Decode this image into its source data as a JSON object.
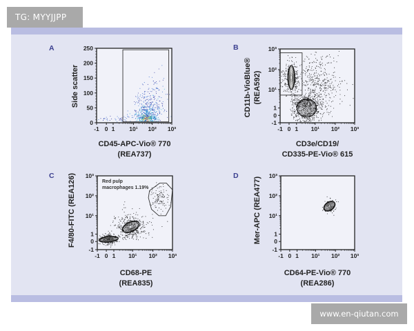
{
  "watermarks": {
    "top_left": "TG: MYYJJPP",
    "bottom_right": "www.en-qiutan.com"
  },
  "colors": {
    "band": "#b9bde2",
    "panel_bg": "#e2e4f2",
    "plot_bg": "#f1f2f9",
    "panel_letter": "#3b3f8f",
    "density": [
      "#2b2f9e",
      "#3a6fd0",
      "#33c0d8",
      "#4fc36a",
      "#f2d23c",
      "#e2402a"
    ]
  },
  "chart_data": [
    {
      "panel": "A",
      "type": "scatter",
      "style": "density pseudocolor",
      "xlabel": [
        "CD45-APC-Vio® 770",
        "(REA737)"
      ],
      "ylabel": [
        "Side scatter"
      ],
      "x_axis": {
        "scale": "biexponential",
        "ticks": [
          -1,
          0,
          1,
          10,
          100,
          1000
        ],
        "tick_labels": [
          "-1",
          "0",
          "1",
          "10¹",
          "10²",
          "10³"
        ]
      },
      "y_axis": {
        "scale": "linear",
        "range": [
          0,
          250
        ],
        "ticks": [
          0,
          50,
          100,
          150,
          200,
          250
        ],
        "tick_labels": [
          "0",
          "50",
          "100",
          "150",
          "200",
          "250"
        ]
      },
      "gate": {
        "shape": "rectangle",
        "x": [
          3,
          700
        ],
        "y": [
          3,
          245
        ]
      },
      "populations": [
        {
          "x_center": 50,
          "x_sd_decades": 0.22,
          "y_center": 15,
          "y_sd": 6,
          "y_scale": "linear",
          "events": 160,
          "density": "high"
        },
        {
          "x_center": 55,
          "x_sd_decades": 0.33,
          "y_center": 30,
          "y_sd": 20,
          "y_scale": "linear",
          "events": 320,
          "density": "medium"
        },
        {
          "x_center": 80,
          "x_sd_decades": 0.45,
          "y_center": 60,
          "y_sd": 45,
          "y_scale": "linear",
          "events": 260,
          "density": "low"
        },
        {
          "x_center": 1.5,
          "x_sd": 2,
          "x_scale": "linear",
          "y_center": 20,
          "y_sd": 10,
          "y_scale": "linear",
          "events": 50,
          "density": "low"
        }
      ]
    },
    {
      "panel": "B",
      "type": "scatter",
      "style": "contour with outliers",
      "xlabel": [
        "CD3e/CD19/",
        "CD335-PE-Vio® 615"
      ],
      "ylabel": [
        "CD11b-VioBlue®",
        "(REA592)"
      ],
      "x_axis": {
        "scale": "biexponential",
        "ticks": [
          -1,
          0,
          1,
          10,
          100,
          1000
        ],
        "tick_labels": [
          "-1",
          "0",
          "1",
          "10¹",
          "10²",
          "10³"
        ]
      },
      "y_axis": {
        "scale": "biexponential",
        "ticks": [
          -1,
          0,
          1,
          10,
          100,
          1000
        ],
        "tick_labels": [
          "-1",
          "0",
          "1",
          "10¹",
          "10²",
          "10³"
        ]
      },
      "gate": {
        "shape": "rectangle",
        "x": [
          -1,
          2
        ],
        "y": [
          5,
          650
        ]
      },
      "populations": [
        {
          "x_center": 3.5,
          "x_sd_decades": 0.45,
          "y_center": 1,
          "y_sd": 1.6,
          "y_scale": "linear",
          "events": 650,
          "contour": true
        },
        {
          "x_center": 0.3,
          "x_sd": 0.5,
          "x_scale": "linear",
          "y_center": 40,
          "y_sd_decades": 0.45,
          "events": 320,
          "contour": true
        },
        {
          "x_center": 15,
          "x_sd_decades": 0.6,
          "y_center": 20,
          "y_sd_decades": 0.7,
          "events": 420
        }
      ]
    },
    {
      "panel": "C",
      "type": "scatter",
      "style": "contour with outliers",
      "xlabel": [
        "CD68-PE",
        "(REA835)"
      ],
      "ylabel": [
        "F4/80-FITC (REA126)"
      ],
      "x_axis": {
        "scale": "biexponential",
        "ticks": [
          -1,
          0,
          1,
          10,
          100,
          1000
        ],
        "tick_labels": [
          "-1",
          "0",
          "1",
          "10¹",
          "10²",
          "10³"
        ]
      },
      "y_axis": {
        "scale": "biexponential",
        "ticks": [
          -1,
          0,
          1,
          10,
          100,
          1000
        ],
        "tick_labels": [
          "-1",
          "0",
          "1",
          "10¹",
          "10²",
          "10³"
        ]
      },
      "gate": {
        "shape": "polygon",
        "name": "Red pulp macrophages",
        "percent": 1.19,
        "label": [
          "Red pulp",
          "macrophages 1.19%"
        ],
        "points": [
          [
            68,
            180
          ],
          [
            220,
            430
          ],
          [
            490,
            430
          ],
          [
            1000,
            200
          ],
          [
            800,
            28
          ],
          [
            450,
            10
          ],
          [
            200,
            10
          ],
          [
            85,
            21
          ],
          [
            60,
            80
          ]
        ]
      },
      "populations": [
        {
          "x_center": 0.3,
          "x_sd": 0.5,
          "x_scale": "linear",
          "y_center": 0.3,
          "y_sd": 0.35,
          "y_scale": "linear",
          "events": 260,
          "contour": true
        },
        {
          "x_center": 8,
          "x_sd_decades": 0.45,
          "y_center": 2.5,
          "y_sd_decades": 0.4,
          "events": 360,
          "contour": true
        },
        {
          "x_center": 250,
          "x_sd_decades": 0.25,
          "y_center": 70,
          "y_sd_decades": 0.3,
          "events": 110
        }
      ]
    },
    {
      "panel": "D",
      "type": "scatter",
      "style": "contour",
      "xlabel": [
        "CD64-PE-Vio® 770",
        "(REA286)"
      ],
      "ylabel": [
        "Mer-APC (REA477)"
      ],
      "x_axis": {
        "scale": "biexponential",
        "ticks": [
          -1,
          0,
          1,
          10,
          100,
          1000
        ],
        "tick_labels": [
          "-1",
          "0",
          "1",
          "10¹",
          "10²",
          "10³"
        ]
      },
      "y_axis": {
        "scale": "biexponential",
        "ticks": [
          -1,
          0,
          1,
          10,
          100,
          1000
        ],
        "tick_labels": [
          "-1",
          "0",
          "1",
          "10¹",
          "10²",
          "10³"
        ]
      },
      "populations": [
        {
          "x_center": 50,
          "x_sd_decades": 0.2,
          "y_center": 30,
          "y_sd_decades": 0.2,
          "events": 70,
          "contour": true
        }
      ]
    }
  ]
}
